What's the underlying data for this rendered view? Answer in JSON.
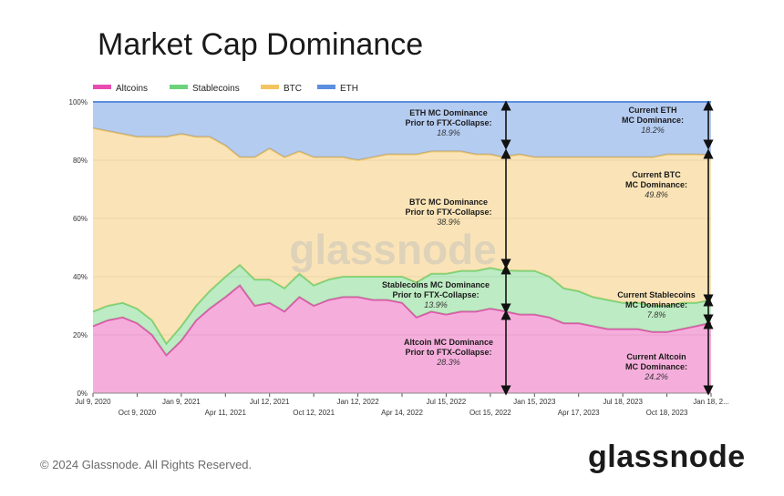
{
  "title": "Market Cap Dominance",
  "footer": {
    "copyright": "© 2024 Glassnode. All Rights Reserved.",
    "brand": "glassnode"
  },
  "watermark": "glassnode",
  "colors": {
    "altcoins": "#e94bb0",
    "stablecoins": "#6dd37b",
    "btc": "#f4c460",
    "eth": "#5b8fdf"
  },
  "chart_data": {
    "type": "area",
    "stacked": true,
    "x": [
      "2020-07-09",
      "2020-08-09",
      "2020-09-09",
      "2020-10-09",
      "2020-11-09",
      "2020-12-09",
      "2021-01-09",
      "2021-02-09",
      "2021-03-09",
      "2021-04-11",
      "2021-05-11",
      "2021-06-11",
      "2021-07-12",
      "2021-08-12",
      "2021-09-12",
      "2021-10-12",
      "2021-11-12",
      "2021-12-12",
      "2022-01-12",
      "2022-02-12",
      "2022-03-14",
      "2022-04-14",
      "2022-05-14",
      "2022-06-14",
      "2022-07-15",
      "2022-08-15",
      "2022-09-15",
      "2022-10-15",
      "2022-11-08",
      "2022-12-15",
      "2023-01-15",
      "2023-02-15",
      "2023-03-17",
      "2023-04-17",
      "2023-05-17",
      "2023-06-17",
      "2023-07-18",
      "2023-08-18",
      "2023-09-18",
      "2023-10-18",
      "2023-11-18",
      "2023-12-18",
      "2024-01-18"
    ],
    "series": [
      {
        "name": "Altcoins",
        "values": [
          23,
          25,
          26,
          24,
          20,
          13,
          18,
          25,
          29,
          33,
          37,
          30,
          31,
          28,
          33,
          30,
          32,
          33,
          33,
          32,
          32,
          31,
          26,
          28,
          27,
          28,
          28,
          29,
          28.3,
          27,
          27,
          26,
          24,
          24,
          23,
          22,
          22,
          22,
          21,
          21,
          22,
          23,
          24.2
        ]
      },
      {
        "name": "Stablecoins",
        "values": [
          5,
          5,
          5,
          5,
          5,
          4,
          5,
          5,
          6,
          7,
          7,
          9,
          8,
          8,
          8,
          7,
          7,
          7,
          7,
          8,
          8,
          9,
          12,
          13,
          14,
          14,
          14,
          14,
          13.9,
          15,
          15,
          14,
          12,
          11,
          10,
          10,
          9,
          9,
          9,
          9,
          9,
          8,
          7.8
        ]
      },
      {
        "name": "BTC",
        "values": [
          63,
          60,
          58,
          59,
          63,
          71,
          66,
          58,
          53,
          45,
          37,
          42,
          45,
          45,
          42,
          44,
          42,
          41,
          40,
          41,
          42,
          42,
          44,
          42,
          42,
          41,
          40,
          39,
          38.9,
          40,
          39,
          41,
          45,
          46,
          48,
          49,
          50,
          50,
          51,
          52,
          51,
          51,
          49.8
        ]
      },
      {
        "name": "ETH",
        "values": [
          9,
          10,
          11,
          12,
          12,
          12,
          11,
          12,
          12,
          15,
          19,
          19,
          16,
          19,
          17,
          19,
          19,
          19,
          20,
          19,
          18,
          18,
          18,
          17,
          17,
          17,
          18,
          18,
          18.9,
          18,
          19,
          19,
          19,
          19,
          19,
          19,
          19,
          19,
          19,
          18,
          18,
          18,
          18.2
        ]
      }
    ],
    "ylim": [
      0,
      100
    ],
    "y_ticks": [
      "0%",
      "20%",
      "40%",
      "60%",
      "80%",
      "100%"
    ],
    "x_ticks_upper": [
      "Jul 9, 2020",
      "Jan 9, 2021",
      "Jul 12, 2021",
      "Jan 12, 2022",
      "Jul 15, 2022",
      "Jan 15, 2023",
      "Jul 18, 2023",
      "Jan 18, 2..."
    ],
    "x_ticks_lower": [
      "Oct 9, 2020",
      "Apr 11, 2021",
      "Oct 12, 2021",
      "Apr 14, 2022",
      "Oct 15, 2022",
      "Apr 17, 2023",
      "Oct 18, 2023"
    ],
    "legend": [
      "Altcoins",
      "Stablecoins",
      "BTC",
      "ETH"
    ],
    "legend_position": "top-left",
    "grid": true,
    "annotations": [
      {
        "lines": [
          "ETH MC Dominance",
          "Prior to FTX-Collapse:"
        ],
        "value": "18.9%"
      },
      {
        "lines": [
          "BTC MC Dominance",
          "Prior to FTX-Collapse:"
        ],
        "value": "38.9%"
      },
      {
        "lines": [
          "Stablecoins MC Dominance",
          "Prior to FTX-Collapse:"
        ],
        "value": "13.9%"
      },
      {
        "lines": [
          "Altcoin MC Dominance",
          "Prior to FTX-Collapse:"
        ],
        "value": "28.3%"
      },
      {
        "lines": [
          "Current ETH",
          "MC Dominance:"
        ],
        "value": "18.2%"
      },
      {
        "lines": [
          "Current BTC",
          "MC Dominance:"
        ],
        "value": "49.8%"
      },
      {
        "lines": [
          "Current Stablecoins",
          "MC Dominance:"
        ],
        "value": "7.8%"
      },
      {
        "lines": [
          "Current Altcoin",
          "MC Dominance:"
        ],
        "value": "24.2%"
      }
    ]
  }
}
